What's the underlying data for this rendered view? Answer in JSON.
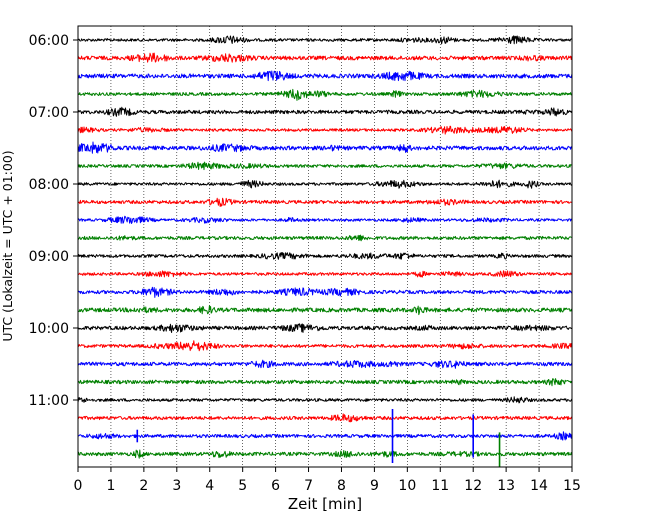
{
  "chart_data": {
    "type": "line",
    "title": "",
    "xlabel": "Zeit  [min]",
    "ylabel": "UTC (Lokalzeit = UTC + 01:00)",
    "xlim": [
      0,
      15
    ],
    "x_ticks": [
      "0",
      "1",
      "2",
      "3",
      "4",
      "5",
      "6",
      "7",
      "8",
      "9",
      "10",
      "11",
      "12",
      "13",
      "14",
      "15"
    ],
    "y_ticks": [
      {
        "label": "06:00",
        "row": 0
      },
      {
        "label": "07:00",
        "row": 4
      },
      {
        "label": "08:00",
        "row": 8
      },
      {
        "label": "09:00",
        "row": 12
      },
      {
        "label": "10:00",
        "row": 16
      },
      {
        "label": "11:00",
        "row": 20
      }
    ],
    "grid": "vertical-dotted",
    "row_colors": [
      "#000000",
      "#ff0000",
      "#0000ff",
      "#008000"
    ],
    "row_count": 24,
    "events": [
      {
        "row": 22,
        "minute": 1.8,
        "amplitude": 0.35,
        "color": "#0000ff"
      },
      {
        "row": 22,
        "minute": 9.55,
        "amplitude": 1.5,
        "color": "#0000ff"
      },
      {
        "row": 22,
        "minute": 12.0,
        "amplitude": 1.2,
        "color": "#0000ff"
      },
      {
        "row": 23,
        "minute": 12.8,
        "amplitude": 1.2,
        "color": "#008000"
      }
    ]
  }
}
